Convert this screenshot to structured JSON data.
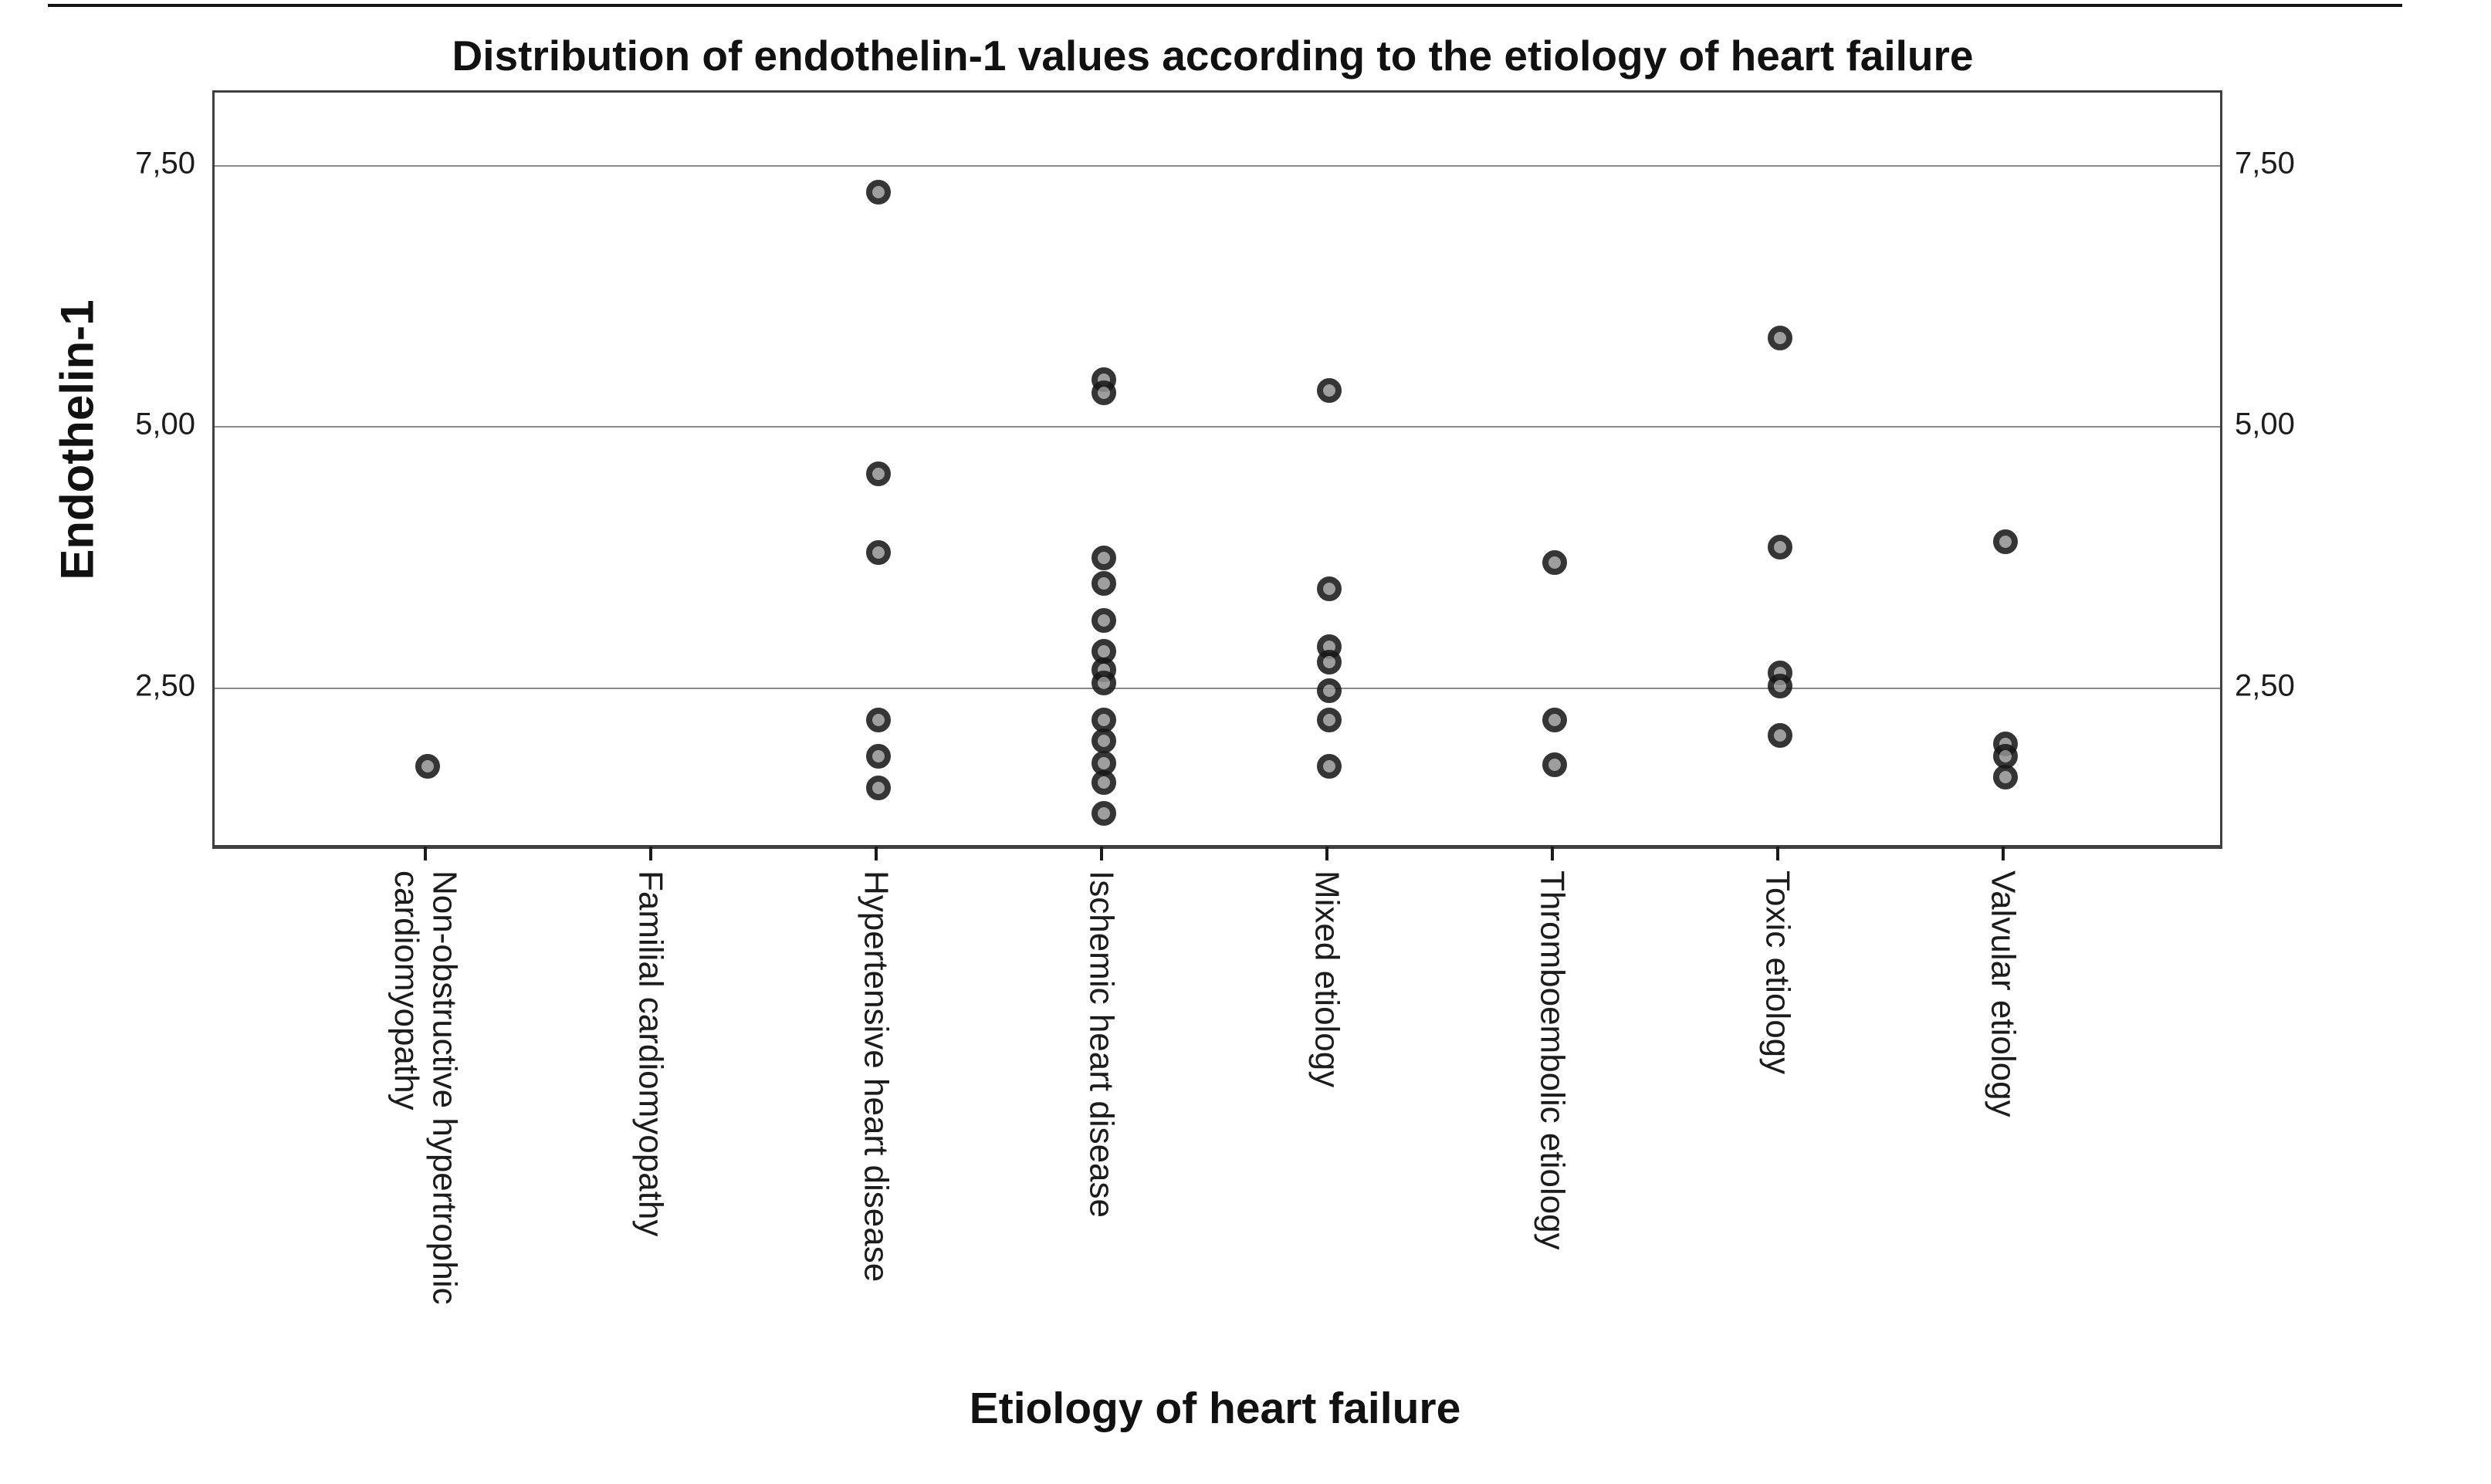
{
  "chart_data": {
    "type": "scatter",
    "title": "Distribution of endothelin-1 values according to the etiology of heart failure",
    "xlabel": "Etiology of heart failure",
    "ylabel": "Endothelin-1",
    "ylim": [
      1.0,
      8.2
    ],
    "yticks": [
      7.5,
      5.0,
      2.5
    ],
    "ytick_labels": [
      "7,50",
      "5,00",
      "2,50"
    ],
    "ytick_labels_right": [
      "7,50",
      "5,00",
      "2,50"
    ],
    "decimal_separator": ",",
    "grid": "horizontal gridlines at yticks, mirrored tick labels on right side",
    "legend": "none",
    "categories": [
      "Non-obstructive hypertrophic cardiomyopathy",
      "Familial cardiomyopathy",
      "Hypertensive heart disease",
      "Ischemic heart disease",
      "Mixed etiology",
      "Thromboembolic etiology",
      "Toxic etiology",
      "Valvular etiology"
    ],
    "series": [
      {
        "name": "Endothelin-1",
        "values_by_category": [
          [
            1.75
          ],
          [],
          [
            7.25,
            4.55,
            3.8,
            2.2,
            1.85,
            1.55
          ],
          [
            5.45,
            5.33,
            3.75,
            3.5,
            3.15,
            2.85,
            2.68,
            2.55,
            2.2,
            2.0,
            1.78,
            1.6,
            1.3
          ],
          [
            5.35,
            3.45,
            2.9,
            2.75,
            2.48,
            2.2,
            1.75
          ],
          [
            3.7,
            2.2,
            1.77
          ],
          [
            5.85,
            3.85,
            2.65,
            2.52,
            2.05
          ],
          [
            3.9,
            1.97,
            1.85,
            1.65
          ]
        ]
      }
    ]
  }
}
